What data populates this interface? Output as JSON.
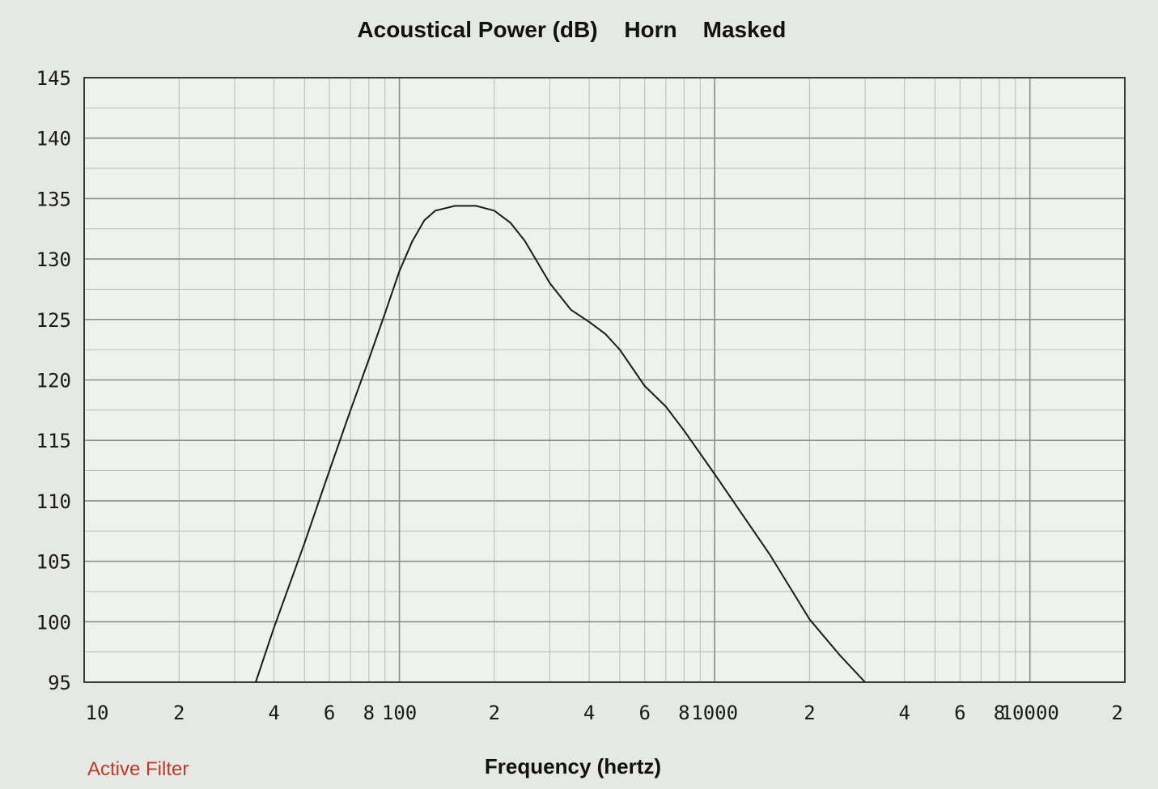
{
  "title": {
    "main": "Acoustical Power (dB)",
    "mode": "Horn",
    "flag": "Masked"
  },
  "status_text": "Active Filter",
  "colors": {
    "plot_background": "#eef2ec",
    "grid_major": "#8c8f8c",
    "grid_minor": "#b8bbb8",
    "curve": "#1b1b1b",
    "status": "#c0392b"
  },
  "chart_data": {
    "type": "line",
    "title": "Acoustical Power (dB)   Horn   Masked",
    "xlabel": "Frequency (hertz)",
    "ylabel": "",
    "xscale": "log",
    "xlim": [
      10,
      20000
    ],
    "ylim": [
      95,
      145
    ],
    "grid": true,
    "y_ticks": [
      145,
      140,
      135,
      130,
      125,
      120,
      115,
      110,
      105,
      100,
      95
    ],
    "x_ticks": [
      {
        "value": 10,
        "label": "10"
      },
      {
        "value": 20,
        "label": "2"
      },
      {
        "value": 40,
        "label": "4"
      },
      {
        "value": 60,
        "label": "6"
      },
      {
        "value": 80,
        "label": "8"
      },
      {
        "value": 100,
        "label": "100"
      },
      {
        "value": 200,
        "label": "2"
      },
      {
        "value": 400,
        "label": "4"
      },
      {
        "value": 600,
        "label": "6"
      },
      {
        "value": 800,
        "label": "8"
      },
      {
        "value": 1000,
        "label": "1000"
      },
      {
        "value": 2000,
        "label": "2"
      },
      {
        "value": 4000,
        "label": "4"
      },
      {
        "value": 6000,
        "label": "6"
      },
      {
        "value": 8000,
        "label": "8"
      },
      {
        "value": 10000,
        "label": "10000"
      },
      {
        "value": 20000,
        "label": "2"
      }
    ],
    "series": [
      {
        "x": [
          35,
          40,
          50,
          60,
          70,
          80,
          90,
          100,
          110,
          120,
          130,
          150,
          175,
          200,
          225,
          250,
          300,
          350,
          400,
          450,
          500,
          600,
          700,
          800,
          1000,
          1200,
          1500,
          2000,
          2500,
          3000
        ],
        "y": [
          95,
          99.5,
          106.5,
          112.5,
          117.5,
          121.7,
          125.5,
          129,
          131.5,
          133.2,
          134,
          134.4,
          134.4,
          134,
          133,
          131.5,
          128,
          125.8,
          124.8,
          123.8,
          122.5,
          119.5,
          117.8,
          115.8,
          112.2,
          109.2,
          105.5,
          100.2,
          97.2,
          95
        ]
      }
    ]
  }
}
